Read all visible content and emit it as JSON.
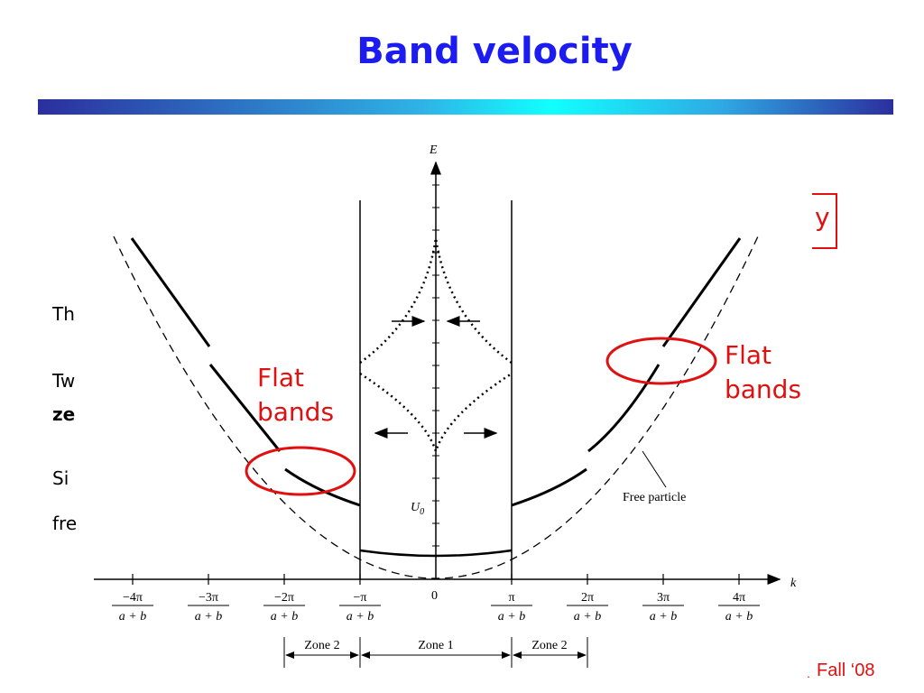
{
  "slide": {
    "title": "Band velocity",
    "footer": "Fall ‘08",
    "footer_mark": "."
  },
  "background_text": {
    "line1": "Th",
    "line2": "Tw",
    "line3": "ze",
    "line4": "Si",
    "line5": "fre",
    "boxed_fragment": "y"
  },
  "annotations": {
    "left_note_line1": "Flat",
    "left_note_line2": "bands",
    "right_note_line1": "Flat",
    "right_note_line2": "bands"
  },
  "figure": {
    "y_axis_label": "E",
    "x_axis_label": "k",
    "u0_label": "U",
    "u0_subscript": "0",
    "origin_label": "0",
    "tick_labels": [
      {
        "num": "−4π",
        "den": "a + b"
      },
      {
        "num": "−3π",
        "den": "a + b"
      },
      {
        "num": "−2π",
        "den": "a + b"
      },
      {
        "num": "−π",
        "den": "a + b"
      },
      {
        "num": "π",
        "den": "a + b"
      },
      {
        "num": "2π",
        "den": "a + b"
      },
      {
        "num": "3π",
        "den": "a + b"
      },
      {
        "num": "4π",
        "den": "a + b"
      }
    ],
    "zones": [
      "Zone 2",
      "Zone 1",
      "Zone 2"
    ],
    "free_particle_label": "Free particle"
  },
  "colors": {
    "title": "#1c1cf0",
    "annotation": "#e01010",
    "curves": "#000000"
  }
}
